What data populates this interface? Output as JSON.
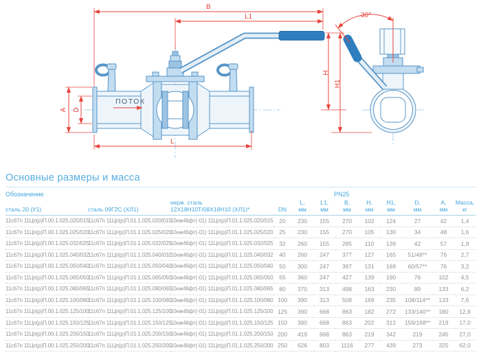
{
  "drawing": {
    "labels": {
      "b": "B",
      "l1": "L1",
      "h": "H",
      "h1": "H1",
      "a": "A",
      "d": "D",
      "l": "L",
      "flow": "ПОТОК",
      "angle": "30°"
    },
    "colors": {
      "line_blue": "#5795c7",
      "handle_solid": "#2f7fbe",
      "dimension_red": "#e8433a",
      "centerline_blue": "#93c4e4"
    }
  },
  "table": {
    "title": "Основные размеры и масса",
    "designation_header": "Обозначение",
    "pn_header": "PN25",
    "steel_columns": [
      "сталь 20 (У1)",
      "сталь 09Г2С (ХЛ1)",
      [
        "нерж. сталь",
        "12Х18Н10Т/08Х18Н10 (ХЛ1)*"
      ]
    ],
    "dim_columns": [
      [
        "DN",
        ""
      ],
      [
        "L,",
        "мм"
      ],
      [
        "L1,",
        "мм"
      ],
      [
        "B,",
        "мм"
      ],
      [
        "H,",
        "мм"
      ],
      [
        "H1,",
        "мм"
      ],
      [
        "D,",
        "мм"
      ],
      [
        "A,",
        "мм"
      ],
      [
        "Масса,",
        "кг"
      ]
    ],
    "rows": [
      [
        "11с67п 11Цп(р)П.00.1.025.020/015",
        "11с67п 11Цп(р)П.01.1.025.020/015",
        "10нж46фт(-01) 11Цп(р)П.01.1.025.020/015",
        "20",
        "230",
        "155",
        "270",
        "102",
        "124",
        "27",
        "42",
        "1,4"
      ],
      [
        "11с67п 11Цп(р)П.00.1.025.025/020",
        "11с67п 11Цп(р)П.01.1.025.025/020",
        "10нж46фт(-01) 11Цп(р)П.01.1.025.025/020",
        "25",
        "230",
        "155",
        "270",
        "105",
        "130",
        "34",
        "48",
        "1,6"
      ],
      [
        "11с67п 11Цп(р)П.00.1.025.032/025",
        "11с67п 11Цп(р)П.01.1.025.032/025",
        "10нж46фт(-01) 11Цп(р)П.01.1.025.032/025",
        "32",
        "260",
        "155",
        "285",
        "110",
        "139",
        "42",
        "57",
        "1,9"
      ],
      [
        "11с67п 11Цп(р)П.00.1.025.040/032",
        "11с67п 11Цп(р)П.01.1.025.040/032",
        "10нж46фт(-01) 11Цп(р)П.01.1.025.040/032",
        "40",
        "260",
        "247",
        "377",
        "127",
        "165",
        "51/48**",
        "76",
        "2,7"
      ],
      [
        "11с67п 11Цп(р)П.00.1.025.050/040",
        "11с67п 11Цп(р)П.01.1.025.050/040",
        "10нж46фт(-01) 11Цп(р)П.01.1.025.050/040",
        "50",
        "300",
        "247",
        "397",
        "131",
        "169",
        "60/57**",
        "76",
        "3,2"
      ],
      [
        "11с67п 11Цп(р)П.00.1.025.065/050",
        "11с67п 11Цп(р)П.01.1.025.065/050",
        "10нж46фт(-01) 11Цп(р)П.01.1.025.065/050",
        "65",
        "360",
        "247",
        "427",
        "139",
        "190",
        "76",
        "102",
        "4,5"
      ],
      [
        "11с67п 11Цп(р)П.00.1.025.080/065",
        "11с67п 11Цп(р)П.01.1.025.080/065",
        "10нж46фт(-01) 11Цп(р)П.01.1.025.080/065",
        "80",
        "370",
        "313",
        "498",
        "163",
        "230",
        "89",
        "133",
        "6,2"
      ],
      [
        "11с67п 11Цп(р)П.00.1.025.100/080",
        "11с67п 11Цп(р)П.01.1.025.100/080",
        "10нж46фт(-01) 11Цп(р)П.01.1.025.100/080",
        "100",
        "390",
        "313",
        "508",
        "169",
        "235",
        "108/114**",
        "133",
        "7,6"
      ],
      [
        "11с67п 11Цп(р)П.00.1.025.125/100",
        "11с67п 11Цп(р)П.01.1.025.125/100",
        "10нж46фт(-01) 11Цп(р)П.01.1.025.125/100",
        "125",
        "390",
        "668",
        "863",
        "182",
        "272",
        "133/140**",
        "180",
        "12,8"
      ],
      [
        "11с67п 11Цп(р)П.00.1.025.150/125",
        "11с67п 11Цп(р)П.01.1.025.150/125",
        "10нж46фт(-01) 11Цп(р)П.01.1.025.150/125",
        "150",
        "390",
        "668",
        "863",
        "202",
        "312",
        "159/168**",
        "219",
        "17,0"
      ],
      [
        "11с67п 11Цп(р)П.00.1.025.200/150",
        "11с67п 11Цп(р)П.01.1.025.200/150",
        "10нж46фт(-01) 11Цп(р)П.01.1.025.200/150",
        "200",
        "419",
        "668",
        "863",
        "219",
        "342",
        "219",
        "245",
        "27,0"
      ],
      [
        "11с67п 11Цп(р)П.00.1.025.250/200",
        "11с67п 11Цп(р)П.01.1.025.250/200",
        "10нж46фт(-01) 11Цп(р)П.01.1.025.250/200",
        "250",
        "626",
        "803",
        "1116",
        "277",
        "439",
        "273",
        "325",
        "62,0"
      ]
    ]
  }
}
